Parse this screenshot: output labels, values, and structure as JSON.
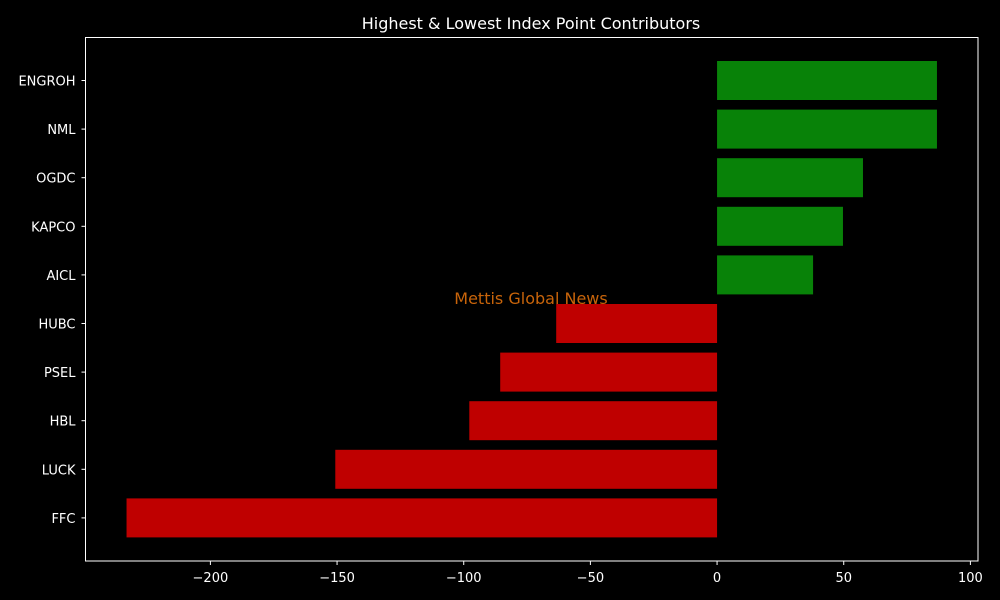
{
  "chart_data": {
    "type": "bar",
    "orientation": "horizontal",
    "title": "Highest & Lowest Index Point Contributors",
    "watermark": "Mettis Global News",
    "categories": [
      "ENGROH",
      "NML",
      "OGDC",
      "KAPCO",
      "AICL",
      "HUBC",
      "PSEL",
      "HBL",
      "LUCK",
      "FFC"
    ],
    "values": [
      86.8,
      86.8,
      57.6,
      49.7,
      37.9,
      -63.5,
      -85.6,
      -97.8,
      -150.7,
      -233.1
    ],
    "xlim": [
      -249.3,
      103
    ],
    "xticks": [
      -200,
      -150,
      -100,
      -50,
      0,
      50,
      100
    ],
    "xtick_labels": [
      "−200",
      "−150",
      "−100",
      "−50",
      "0",
      "50",
      "100"
    ],
    "xlabel": "",
    "ylabel": "",
    "grid": false,
    "colors": {
      "positive": "#088208",
      "negative": "#bf0000",
      "background": "#000000",
      "watermark": "#c8640a"
    }
  }
}
